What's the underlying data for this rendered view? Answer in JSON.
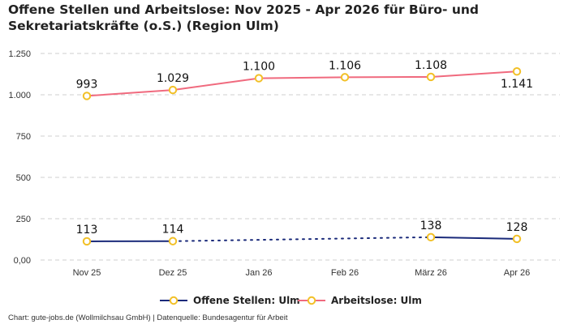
{
  "title_line1": "Offene Stellen und Arbeitslose: Nov 2025 - Apr 2026 für Büro- und",
  "title_line2": "Sekretariatskräfte (o.S.) (Region Ulm)",
  "footer": "Chart: gute-jobs.de (Wollmilchsau GmbH) | Datenquelle: Bundesagentur für Arbeit",
  "chart_data": {
    "type": "line",
    "categories": [
      "Nov 25",
      "Dez 25",
      "Jan 26",
      "Feb 26",
      "März 26",
      "Apr 26"
    ],
    "ylim": [
      0,
      1250
    ],
    "yticks": [
      0,
      250,
      500,
      750,
      1000,
      1250
    ],
    "ytick_labels": [
      "0,00",
      "250",
      "500",
      "750",
      "1.000",
      "1.250"
    ],
    "grid": true,
    "legend_position": "bottom",
    "series": [
      {
        "name": "Offene Stellen: Ulm",
        "color": "#1a2a7a",
        "values": [
          113,
          114,
          null,
          null,
          138,
          128
        ],
        "labels": [
          "113",
          "114",
          "",
          "",
          "138",
          "128"
        ]
      },
      {
        "name": "Arbeitslose: Ulm",
        "color": "#f06a7e",
        "values": [
          993,
          1029,
          1100,
          1106,
          1108,
          1141
        ],
        "labels": [
          "993",
          "1.029",
          "1.100",
          "1.106",
          "1.108",
          "1.141"
        ]
      }
    ],
    "marker_color": "#f2c027"
  }
}
